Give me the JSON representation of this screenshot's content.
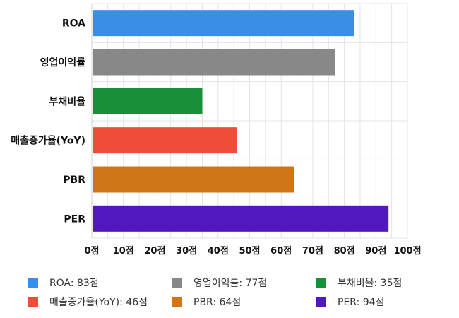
{
  "chart_data": {
    "type": "bar",
    "orientation": "horizontal",
    "categories": [
      "ROA",
      "영업이익률",
      "부채비율",
      "매출증가율(YoY)",
      "PBR",
      "PER"
    ],
    "values": [
      83,
      77,
      35,
      46,
      64,
      94
    ],
    "colors": [
      "#3a8ee6",
      "#888888",
      "#1a8f3a",
      "#ee4d3a",
      "#cf7718",
      "#5218c0"
    ],
    "xlim": [
      0,
      100
    ],
    "xticks": [
      0,
      10,
      20,
      30,
      40,
      50,
      60,
      70,
      80,
      90,
      100
    ],
    "tick_suffix": "점",
    "grid": true,
    "legend_position": "bottom"
  },
  "legend": [
    {
      "label": "ROA: 83점",
      "color": "#3a8ee6"
    },
    {
      "label": "영업이익률: 77점",
      "color": "#888888"
    },
    {
      "label": "부채비율: 35점",
      "color": "#1a8f3a"
    },
    {
      "label": "매출증가율(YoY): 46점",
      "color": "#ee4d3a"
    },
    {
      "label": "PBR: 64점",
      "color": "#cf7718"
    },
    {
      "label": "PER: 94점",
      "color": "#5218c0"
    }
  ]
}
